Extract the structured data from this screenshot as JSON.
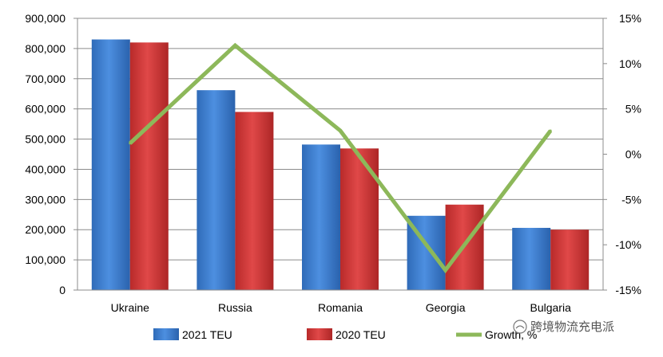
{
  "chart_data": {
    "type": "bar",
    "title": "",
    "xlabel": "",
    "ylabel": "",
    "categories": [
      "Ukraine",
      "Russia",
      "Romania",
      "Georgia",
      "Bulgaria"
    ],
    "series": [
      {
        "name": "2021 TEU",
        "type": "bar",
        "axis": "left",
        "color": "#3a78c8",
        "values": [
          830000,
          662000,
          482000,
          246000,
          206000
        ]
      },
      {
        "name": "2020 TEU",
        "type": "bar",
        "axis": "left",
        "color": "#c83232",
        "values": [
          820000,
          590000,
          469000,
          283000,
          200000
        ]
      },
      {
        "name": "Growth, %",
        "type": "line",
        "axis": "right",
        "color": "#8db85a",
        "values": [
          1.2,
          12.0,
          2.6,
          -12.8,
          2.6
        ]
      }
    ],
    "ylim": [
      0,
      900000
    ],
    "y_ticks": [
      "0",
      "100,000",
      "200,000",
      "300,000",
      "400,000",
      "500,000",
      "600,000",
      "700,000",
      "800,000",
      "900,000"
    ],
    "y2lim": [
      -15,
      15
    ],
    "y2_ticks": [
      "-15%",
      "-10%",
      "-5%",
      "0%",
      "5%",
      "10%",
      "15%"
    ],
    "grid": true,
    "legend_position": "bottom"
  },
  "watermark": {
    "text": "跨境物流充电派"
  }
}
